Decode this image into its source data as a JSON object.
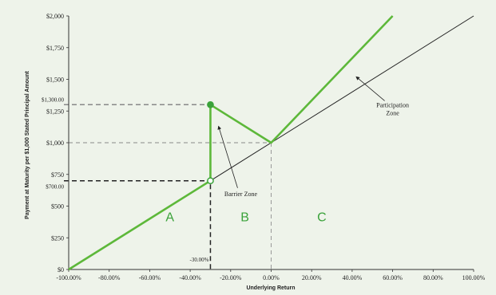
{
  "chart_data": {
    "type": "line",
    "xlabel": "Underlying Return",
    "ylabel": "Payment at Maturity per $1,000 Stated Principal Amount",
    "xlim": [
      -100,
      100
    ],
    "ylim": [
      0,
      2000
    ],
    "x_ticks": [
      "-100.00%",
      "-80.00%",
      "-60.00%",
      "-40.00%",
      "-20.00%",
      "0.00%",
      "20.00%",
      "40.00%",
      "60.00%",
      "80.00%",
      "100.00%"
    ],
    "x_tick_values": [
      -100,
      -80,
      -60,
      -40,
      -20,
      0,
      20,
      40,
      60,
      80,
      100
    ],
    "y_ticks": [
      "$0",
      "$250",
      "$500",
      "$750",
      "$1,000",
      "$1,250",
      "$1,500",
      "$1,750",
      "$2,000"
    ],
    "y_tick_values": [
      0,
      250,
      500,
      750,
      1000,
      1250,
      1500,
      1750,
      2000
    ],
    "series": [
      {
        "values_x": [
          -100,
          100
        ],
        "values_y": [
          0,
          2000
        ],
        "color": "#222222"
      },
      {
        "values_x": [
          -100,
          -30,
          -30,
          0,
          60
        ],
        "values_y": [
          0,
          700,
          1300,
          1000,
          2000
        ],
        "color": "#5db83a"
      }
    ],
    "markers": [
      {
        "x": -30,
        "y": 1300,
        "filled": true
      },
      {
        "x": -30,
        "y": 700,
        "filled": false
      }
    ],
    "reference_lines": {
      "h_1300": {
        "y": 1300,
        "label": "$1,300.00"
      },
      "h_700": {
        "y": 700,
        "label": "$700.00"
      },
      "h_1000": {
        "y": 1000
      },
      "v_minus30": {
        "x": -30,
        "label": "-30.00%"
      },
      "v_zero": {
        "x": 0
      }
    },
    "zones": [
      {
        "letter": "A",
        "x": -50,
        "y": 380
      },
      {
        "letter": "B",
        "x": -13,
        "y": 380
      },
      {
        "letter": "C",
        "x": 25,
        "y": 380
      }
    ],
    "annotations": {
      "participation_zone": {
        "line1": "Participation",
        "line2": "Zone",
        "x": 60,
        "y": 1280,
        "arrow_to_x": 42,
        "arrow_to_y": 1520
      },
      "barrier_zone": {
        "text": "Barrier Zone",
        "x": -15,
        "y": 580,
        "arrow_to_x": -26,
        "arrow_to_y": 1130
      }
    }
  }
}
